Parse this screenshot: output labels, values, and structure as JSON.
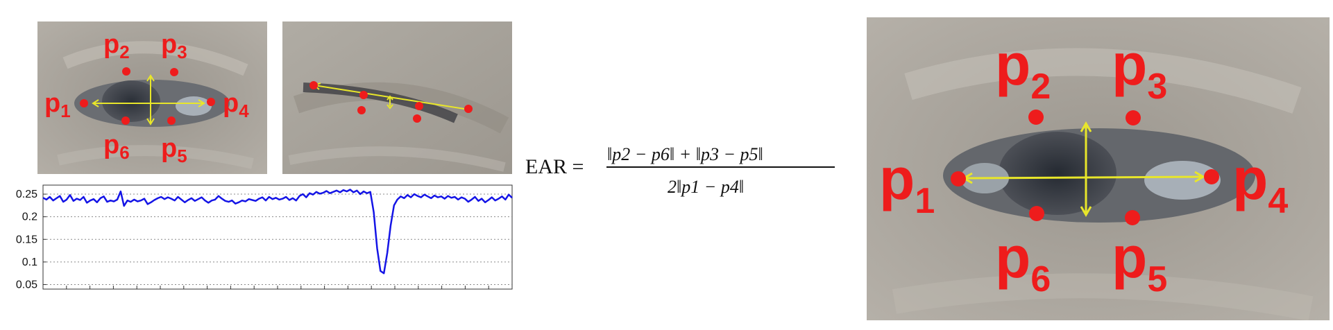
{
  "landmarks": {
    "p1": {
      "base": "p",
      "sub": "1"
    },
    "p2": {
      "base": "p",
      "sub": "2"
    },
    "p3": {
      "base": "p",
      "sub": "3"
    },
    "p4": {
      "base": "p",
      "sub": "4"
    },
    "p5": {
      "base": "p",
      "sub": "5"
    },
    "p6": {
      "base": "p",
      "sub": "6"
    }
  },
  "formula": {
    "lhs": "EAR =",
    "numerator": "‖p2 − p6‖ + ‖p3 − p5‖",
    "denominator": "2‖p1 − p4‖"
  },
  "colors": {
    "landmark": "#ee1c1c",
    "arrow": "#e8e62a",
    "series": "#1414e6"
  },
  "chart_data": {
    "type": "line",
    "ylim": [
      0.04,
      0.27
    ],
    "yticks": [
      "0.25",
      "0.2",
      "0.15",
      "0.1",
      "0.05"
    ],
    "ytick_values": [
      0.25,
      0.2,
      0.15,
      0.1,
      0.05
    ],
    "grid": true,
    "x": [
      0,
      1,
      2,
      3,
      4,
      5,
      6,
      7,
      8,
      9,
      10,
      11,
      12,
      13,
      14,
      15,
      16,
      17,
      18,
      19,
      20,
      21,
      22,
      23,
      24,
      25,
      26,
      27,
      28,
      29,
      30,
      31,
      32,
      33,
      34,
      35,
      36,
      37,
      38,
      39,
      40,
      41,
      42,
      43,
      44,
      45,
      46,
      47,
      48,
      49,
      50,
      51,
      52,
      53,
      54,
      55,
      56,
      57,
      58,
      59,
      60,
      61,
      62,
      63,
      64,
      65,
      66,
      67,
      68,
      69,
      70,
      71,
      72,
      73,
      74,
      75,
      76,
      77,
      78,
      79,
      80,
      81,
      82,
      83,
      84,
      85,
      86,
      87,
      88,
      89,
      90,
      91,
      92,
      93,
      94,
      95,
      96,
      97,
      98,
      99,
      100,
      101,
      102,
      103,
      104,
      105,
      106,
      107,
      108,
      109,
      110,
      111,
      112,
      113,
      114,
      115,
      116,
      117,
      118,
      119,
      120,
      121,
      122,
      123,
      124,
      125,
      126,
      127,
      128,
      129,
      130,
      131,
      132,
      133,
      134,
      135,
      136,
      137,
      138,
      139
    ],
    "series": [
      {
        "values": [
          0.242,
          0.238,
          0.244,
          0.236,
          0.241,
          0.246,
          0.233,
          0.238,
          0.248,
          0.235,
          0.24,
          0.237,
          0.244,
          0.231,
          0.236,
          0.239,
          0.232,
          0.241,
          0.245,
          0.233,
          0.236,
          0.234,
          0.238,
          0.256,
          0.224,
          0.236,
          0.233,
          0.238,
          0.234,
          0.236,
          0.24,
          0.228,
          0.232,
          0.237,
          0.241,
          0.244,
          0.239,
          0.243,
          0.24,
          0.236,
          0.244,
          0.238,
          0.232,
          0.237,
          0.241,
          0.235,
          0.239,
          0.243,
          0.236,
          0.231,
          0.236,
          0.238,
          0.246,
          0.24,
          0.235,
          0.233,
          0.236,
          0.229,
          0.232,
          0.236,
          0.234,
          0.239,
          0.237,
          0.235,
          0.24,
          0.243,
          0.236,
          0.244,
          0.239,
          0.242,
          0.238,
          0.24,
          0.244,
          0.237,
          0.241,
          0.236,
          0.246,
          0.25,
          0.243,
          0.252,
          0.249,
          0.255,
          0.251,
          0.253,
          0.257,
          0.252,
          0.255,
          0.258,
          0.254,
          0.259,
          0.256,
          0.26,
          0.254,
          0.258,
          0.25,
          0.256,
          0.252,
          0.255,
          0.21,
          0.13,
          0.08,
          0.075,
          0.12,
          0.18,
          0.225,
          0.238,
          0.245,
          0.241,
          0.248,
          0.243,
          0.25,
          0.246,
          0.243,
          0.249,
          0.245,
          0.241,
          0.247,
          0.243,
          0.245,
          0.24,
          0.246,
          0.242,
          0.244,
          0.238,
          0.243,
          0.24,
          0.233,
          0.238,
          0.244,
          0.235,
          0.24,
          0.232,
          0.237,
          0.243,
          0.236,
          0.24,
          0.245,
          0.238,
          0.249,
          0.242
        ]
      }
    ]
  }
}
